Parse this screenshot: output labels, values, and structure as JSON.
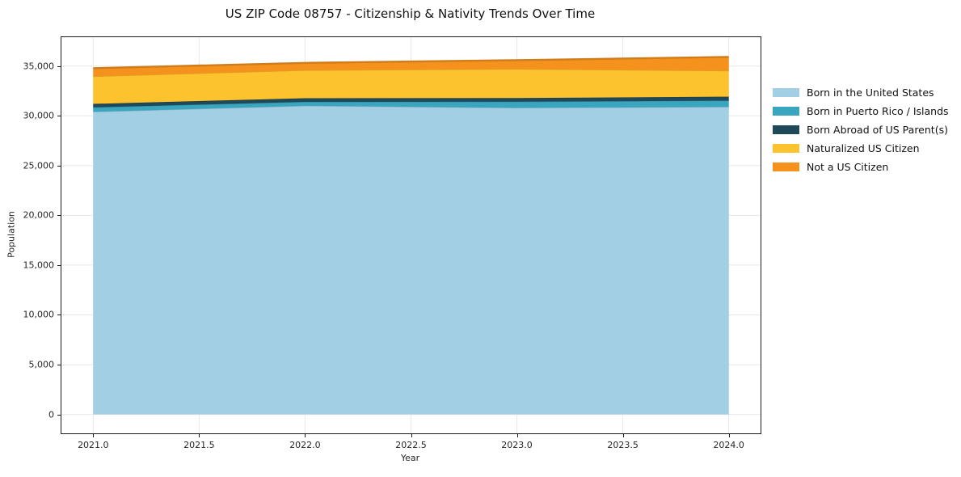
{
  "figure": {
    "title": "US ZIP Code 08757 - Citizenship & Nativity Trends Over Time",
    "xlabel": "Year",
    "ylabel": "Population"
  },
  "chart_data": {
    "type": "area",
    "stacked": true,
    "title": "US ZIP Code 08757 - Citizenship & Nativity Trends Over Time",
    "xlabel": "Year",
    "ylabel": "Population",
    "x": [
      2021,
      2022,
      2023,
      2024
    ],
    "series": [
      {
        "name": "Born in the United States",
        "color": "#a3cfe4",
        "values": [
          30400,
          31000,
          30800,
          30900
        ]
      },
      {
        "name": "Born in Puerto Rico / Islands",
        "color": "#3aa5bf",
        "values": [
          450,
          400,
          620,
          620
        ]
      },
      {
        "name": "Born Abroad of US Parent(s)",
        "color": "#1f4858",
        "values": [
          350,
          370,
          370,
          400
        ]
      },
      {
        "name": "Naturalized US Citizen",
        "color": "#fdc32f",
        "values": [
          2750,
          2800,
          2900,
          2600
        ]
      },
      {
        "name": "Not a US Citizen",
        "color": "#f5921e",
        "values": [
          830,
          750,
          900,
          1400
        ]
      }
    ],
    "totals": [
      34780,
      35320,
      35590,
      35920
    ],
    "xlim": [
      2020.85,
      2024.15
    ],
    "ylim": [
      -1900,
      37900
    ],
    "xticks": {
      "values": [
        2021.0,
        2021.5,
        2022.0,
        2022.5,
        2023.0,
        2023.5,
        2024.0
      ],
      "labels": [
        "2021.0",
        "2021.5",
        "2022.0",
        "2022.5",
        "2023.0",
        "2023.5",
        "2024.0"
      ]
    },
    "yticks": {
      "values": [
        0,
        5000,
        10000,
        15000,
        20000,
        25000,
        30000,
        35000
      ],
      "labels": [
        "0",
        "5,000",
        "10,000",
        "15,000",
        "20,000",
        "25,000",
        "30,000",
        "35,000"
      ]
    },
    "grid": true,
    "grid_color": "#e8e8e8",
    "spine_color": "#1a1a1a",
    "legend_position": "right-outside"
  }
}
